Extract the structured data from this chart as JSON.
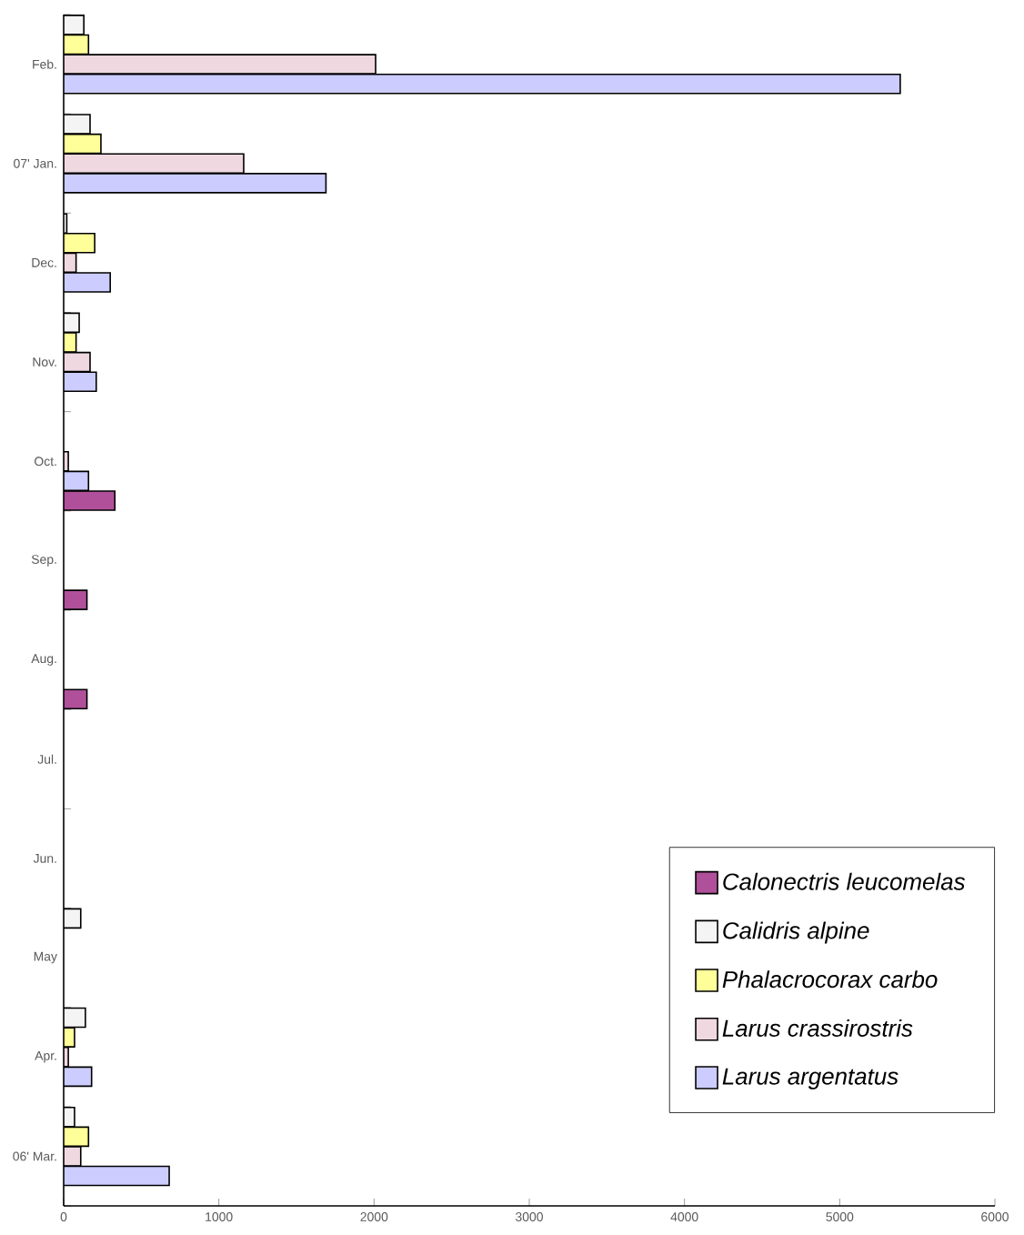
{
  "chart_data": {
    "type": "bar",
    "orientation": "horizontal",
    "categories": [
      "Feb.",
      "07' Jan.",
      "Dec.",
      "Nov.",
      "Oct.",
      "Sep.",
      "Aug.",
      "Jul.",
      "Jun.",
      "May",
      "Apr.",
      "06' Mar."
    ],
    "series": [
      {
        "name": "Calonectris leucomelas",
        "color": "#b0509a",
        "values": [
          null,
          null,
          null,
          null,
          330,
          150,
          150,
          null,
          null,
          null,
          null,
          null
        ]
      },
      {
        "name": "Calidris alpine",
        "color": "#f4f4f4",
        "values": [
          130,
          170,
          20,
          100,
          null,
          null,
          null,
          null,
          null,
          110,
          140,
          70
        ]
      },
      {
        "name": "Phalacrocorax carbo",
        "color": "#ffff99",
        "values": [
          160,
          240,
          200,
          80,
          null,
          null,
          null,
          null,
          null,
          null,
          70,
          160
        ]
      },
      {
        "name": "Larus crassirostris",
        "color": "#f0d8e0",
        "values": [
          2010,
          1160,
          80,
          170,
          30,
          null,
          null,
          null,
          null,
          null,
          30,
          110
        ]
      },
      {
        "name": "Larus argentatus",
        "color": "#ccccff",
        "values": [
          5390,
          1690,
          300,
          210,
          160,
          null,
          null,
          null,
          null,
          null,
          180,
          680
        ]
      }
    ],
    "xlim": [
      0,
      6000
    ],
    "xticks": [
      0,
      1000,
      2000,
      3000,
      4000,
      5000,
      6000
    ],
    "legend": "bottom right",
    "grid": false
  }
}
